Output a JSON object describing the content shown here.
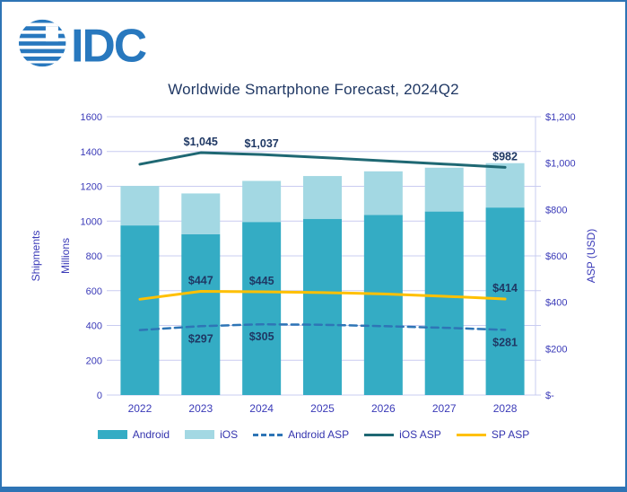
{
  "logo": {
    "text": "IDC",
    "color": "#2878BE"
  },
  "frame": {
    "border_color": "#2E74B5"
  },
  "chart_data": {
    "type": "bar",
    "subtype": "stacked-bars-with-lines",
    "title": "Worldwide Smartphone Forecast, 2024Q2",
    "categories": [
      "2022",
      "2023",
      "2024",
      "2025",
      "2026",
      "2027",
      "2028"
    ],
    "bar_series": [
      {
        "name": "Android",
        "color": "#34ACC4",
        "values": [
          975,
          925,
          995,
          1013,
          1035,
          1055,
          1078
        ]
      },
      {
        "name": "iOS",
        "color": "#A3D8E3",
        "values": [
          227,
          234,
          236,
          246,
          251,
          252,
          255
        ]
      }
    ],
    "line_series": [
      {
        "name": "Android ASP",
        "color": "#2E75B6",
        "style": "dashed",
        "axis": "right",
        "values": [
          280,
          297,
          305,
          303,
          297,
          290,
          281
        ],
        "point_labels": [
          "",
          "$297",
          "$305",
          "",
          "",
          "",
          "$281"
        ],
        "label_position": "below"
      },
      {
        "name": "iOS ASP",
        "color": "#1F6873",
        "style": "solid",
        "axis": "right",
        "values": [
          995,
          1045,
          1037,
          1024,
          1010,
          996,
          982
        ],
        "point_labels": [
          "",
          "$1,045",
          "$1,037",
          "",
          "",
          "",
          "$982"
        ],
        "label_position": "above"
      },
      {
        "name": "SP ASP",
        "color": "#FFC000",
        "style": "solid",
        "axis": "right",
        "values": [
          413,
          447,
          445,
          442,
          436,
          426,
          414
        ],
        "point_labels": [
          "",
          "$447",
          "$445",
          "",
          "",
          "",
          "$414"
        ],
        "label_position": "above"
      }
    ],
    "axes": {
      "left": {
        "title_outer": "Shipments",
        "title_inner": "Millions",
        "min": 0,
        "max": 1600,
        "ticks": [
          "0",
          "200",
          "400",
          "600",
          "800",
          "1000",
          "1200",
          "1400",
          "1600"
        ]
      },
      "right": {
        "title": "ASP (USD)",
        "min": 0,
        "max": 1200,
        "ticks": [
          "$-",
          "$200",
          "$400",
          "$600",
          "$800",
          "$1,000",
          "$1,200"
        ]
      }
    },
    "legend": {
      "position": "bottom",
      "entries": [
        "Android",
        "iOS",
        "Android ASP",
        "iOS ASP",
        "SP ASP"
      ]
    },
    "grid": true,
    "colors": {
      "gridline": "#C9CCF0",
      "tick_text": "#3A3AB8",
      "data_label_text": "#1F3864",
      "title_text": "#203864"
    }
  }
}
